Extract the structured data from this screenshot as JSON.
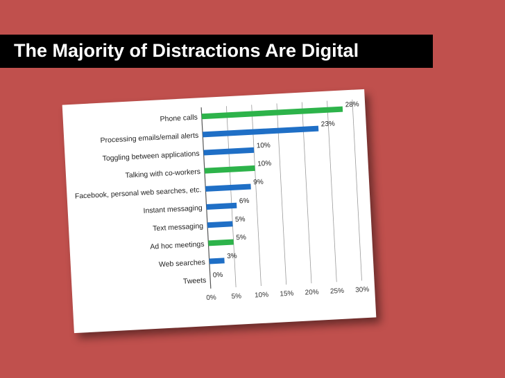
{
  "slide": {
    "title": "The Majority of Distractions Are Digital",
    "background_color": "#c0504d",
    "title_bar_color": "#000000"
  },
  "chart_data": {
    "type": "bar",
    "orientation": "horizontal",
    "categories": [
      "Phone calls",
      "Processing emails/email alerts",
      "Toggling between applications",
      "Talking with co-workers",
      "Facebook, personal web searches, etc.",
      "Instant messaging",
      "Text messaging",
      "Ad hoc meetings",
      "Web searches",
      "Tweets"
    ],
    "values": [
      28,
      23,
      10,
      10,
      9,
      6,
      5,
      5,
      3,
      0
    ],
    "data_labels": [
      "28%",
      "23%",
      "10%",
      "10%",
      "9%",
      "6%",
      "5%",
      "5%",
      "3%",
      "0%"
    ],
    "bar_colors": [
      "#2db34a",
      "#1f6fc6",
      "#1f6fc6",
      "#2db34a",
      "#1f6fc6",
      "#1f6fc6",
      "#1f6fc6",
      "#2db34a",
      "#1f6fc6",
      "#1f6fc6"
    ],
    "x_ticks": [
      "0%",
      "5%",
      "10%",
      "15%",
      "20%",
      "25%",
      "30%"
    ],
    "xlim": [
      0,
      30
    ],
    "grid": "vertical",
    "legend": "none"
  }
}
